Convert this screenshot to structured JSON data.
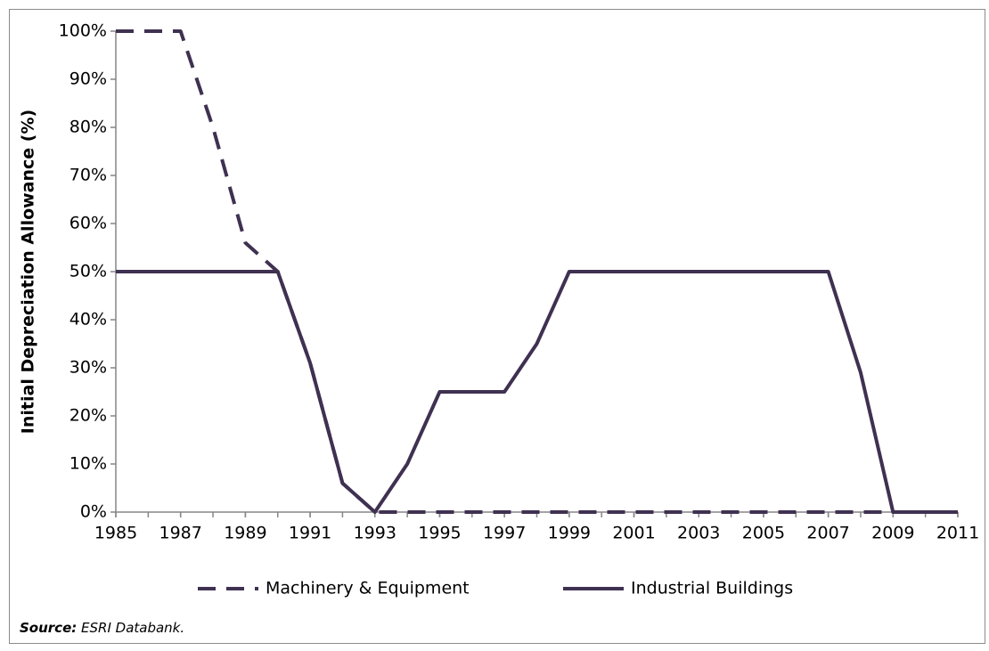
{
  "chart_data": {
    "type": "line",
    "y_label": "Initial Depreciation Allowance (%)",
    "x": [
      1985,
      1986,
      1987,
      1988,
      1989,
      1990,
      1991,
      1992,
      1993,
      1994,
      1995,
      1996,
      1997,
      1998,
      1999,
      2000,
      2001,
      2002,
      2003,
      2004,
      2005,
      2006,
      2007,
      2008,
      2009,
      2010,
      2011
    ],
    "series": [
      {
        "name": "Machinery & Equipment",
        "color": "#3f3151",
        "dash": true,
        "values": [
          100,
          100,
          100,
          80,
          56,
          50,
          31,
          6,
          0,
          0,
          0,
          0,
          0,
          0,
          0,
          0,
          0,
          0,
          0,
          0,
          0,
          0,
          0,
          0,
          0,
          0,
          0
        ]
      },
      {
        "name": "Industrial Buildings",
        "color": "#3f3151",
        "dash": false,
        "values": [
          50,
          50,
          50,
          50,
          50,
          50,
          31,
          6,
          0,
          10,
          25,
          25,
          25,
          35,
          50,
          50,
          50,
          50,
          50,
          50,
          50,
          50,
          50,
          29,
          0,
          0,
          0
        ]
      }
    ],
    "xlim": [
      1985,
      2011
    ],
    "xticks": [
      1985,
      1987,
      1989,
      1991,
      1993,
      1995,
      1997,
      1999,
      2001,
      2003,
      2005,
      2007,
      2009,
      2011
    ],
    "ylim": [
      0,
      100
    ],
    "yticks": [
      {
        "value": 0,
        "label": "0%"
      },
      {
        "value": 10,
        "label": "10%"
      },
      {
        "value": 20,
        "label": "20%"
      },
      {
        "value": 30,
        "label": "30%"
      },
      {
        "value": 40,
        "label": "40%"
      },
      {
        "value": 50,
        "label": "50%"
      },
      {
        "value": 60,
        "label": "60%"
      },
      {
        "value": 70,
        "label": "70%"
      },
      {
        "value": 80,
        "label": "80%"
      },
      {
        "value": 90,
        "label": "90%"
      },
      {
        "value": 100,
        "label": "100%"
      }
    ],
    "grid": false,
    "legend": "bottom",
    "source_label": "Source:",
    "source_text": "ESRI Databank."
  }
}
